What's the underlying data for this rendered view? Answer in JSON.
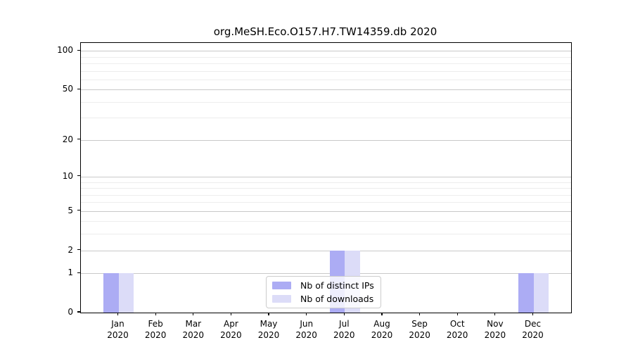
{
  "title": "org.MeSH.Eco.O157.H7.TW14359.db 2020",
  "chart_data": {
    "type": "bar",
    "title": "org.MeSH.Eco.O157.H7.TW14359.db 2020",
    "categories": [
      "Jan 2020",
      "Feb 2020",
      "Mar 2020",
      "Apr 2020",
      "May 2020",
      "Jun 2020",
      "Jul 2020",
      "Aug 2020",
      "Sep 2020",
      "Oct 2020",
      "Nov 2020",
      "Dec 2020"
    ],
    "series": [
      {
        "name": "Nb of distinct IPs",
        "color": "#acacf4",
        "values": [
          1,
          0,
          0,
          0,
          0,
          0,
          2,
          0,
          0,
          0,
          0,
          1
        ]
      },
      {
        "name": "Nb of downloads",
        "color": "#dcdcf8",
        "values": [
          1,
          0,
          0,
          0,
          0,
          0,
          2,
          0,
          0,
          0,
          0,
          1
        ]
      }
    ],
    "xlabel": "",
    "ylabel": "",
    "yscale": "log1p",
    "ylim": [
      0,
      115
    ],
    "yticks": [
      100,
      50,
      20,
      10,
      5,
      2,
      1,
      0
    ],
    "minor_gridlines": [
      90,
      80,
      70,
      60,
      40,
      30,
      9,
      8,
      7,
      6,
      4,
      3
    ],
    "grid": true,
    "legend_position": "lower center"
  },
  "legend": {
    "items": [
      {
        "label": "Nb of distinct IPs",
        "color": "#acacf4"
      },
      {
        "label": "Nb of downloads",
        "color": "#dcdcf8"
      }
    ]
  },
  "style_colors": {
    "major_grid": "#c9c9c9",
    "minor_grid": "#ededed",
    "spine": "#000000",
    "background": "#ffffff"
  }
}
